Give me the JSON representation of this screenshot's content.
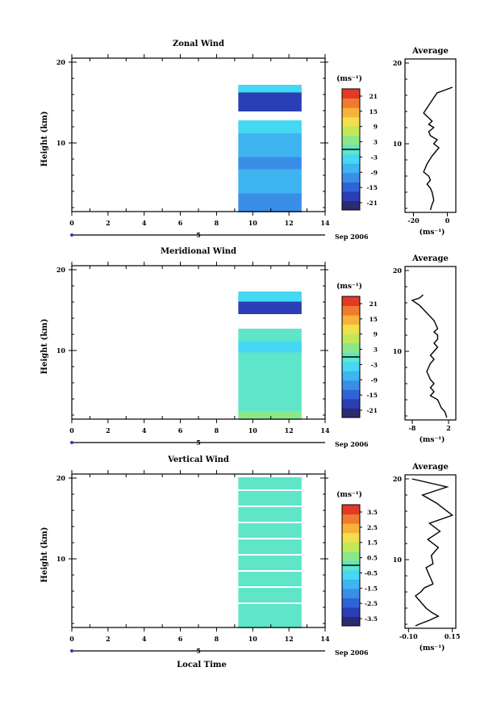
{
  "chart_data": [
    {
      "type": "heatmap",
      "title": "Zonal Wind",
      "ylabel": "Height (km)",
      "yticks": [
        "20",
        "10"
      ],
      "xticks": [
        "0",
        "2",
        "4",
        "6",
        "8",
        "10",
        "12",
        "14"
      ],
      "xlim": [
        0,
        14
      ],
      "ylim": [
        1.5,
        20.5
      ],
      "date_axis": {
        "day": "5",
        "month_year": "Sep 2006"
      },
      "data_x_range": [
        9.2,
        12.7
      ],
      "colorbar": {
        "unit": "(ms⁻¹)",
        "ticks": [
          "21",
          "15",
          "9",
          "3",
          "-3",
          "-9",
          "-15",
          "-21"
        ],
        "range": [
          -24,
          24
        ]
      },
      "cells": [
        {
          "y": 16.6,
          "v": -5
        },
        {
          "y": 15.9,
          "v": -20
        },
        {
          "y": 14.8,
          "v": -18
        },
        {
          "y": 11.9,
          "v": -4
        },
        {
          "y": 10.5,
          "v": -6
        },
        {
          "y": 9.0,
          "v": -9
        },
        {
          "y": 7.5,
          "v": -12
        },
        {
          "y": 6.0,
          "v": -9
        },
        {
          "y": 4.5,
          "v": -8
        },
        {
          "y": 3.0,
          "v": -10
        },
        {
          "y": 2.0,
          "v": -11
        }
      ],
      "average": {
        "title": "Average",
        "xticks": [
          "-20",
          "0"
        ],
        "xlim": [
          -25,
          5
        ],
        "xunit": "(ms⁻¹)",
        "yticks": [
          "20",
          "10"
        ],
        "x": [
          3,
          -2,
          -6,
          -8,
          -14,
          -9,
          -11,
          -8,
          -11,
          -10,
          -6,
          -8,
          -5,
          -7,
          -9,
          -12,
          -14,
          -11,
          -10,
          -12,
          -10,
          -9,
          -8,
          -9,
          -10
        ],
        "y": [
          17,
          16.6,
          16.3,
          15.7,
          13.8,
          12.8,
          12.4,
          12,
          11.5,
          11,
          10.5,
          10,
          9.5,
          9,
          8.5,
          7.5,
          6.5,
          6,
          5.5,
          5,
          4.5,
          4,
          3,
          2.5,
          1.8
        ]
      }
    },
    {
      "type": "heatmap",
      "title": "Meridional Wind",
      "ylabel": "Height (km)",
      "yticks": [
        "20",
        "10"
      ],
      "xticks": [
        "0",
        "2",
        "4",
        "6",
        "8",
        "10",
        "12",
        "14"
      ],
      "xlim": [
        0,
        14
      ],
      "ylim": [
        1.5,
        20.5
      ],
      "date_axis": {
        "day": "5",
        "month_year": "Sep 2006"
      },
      "data_x_range": [
        9.2,
        12.7
      ],
      "colorbar": {
        "unit": "(ms⁻¹)",
        "ticks": [
          "21",
          "15",
          "9",
          "3",
          "-3",
          "-9",
          "-15",
          "-21"
        ],
        "range": [
          -24,
          24
        ]
      },
      "cells": [
        {
          "y": 16.7,
          "v": -2
        },
        {
          "y": 15.4,
          "v": -18
        },
        {
          "y": 11.8,
          "v": 0
        },
        {
          "y": 10.5,
          "v": -2
        },
        {
          "y": 9.0,
          "v": -1
        },
        {
          "y": 7.5,
          "v": 0
        },
        {
          "y": 6.0,
          "v": 1
        },
        {
          "y": 4.5,
          "v": 0
        },
        {
          "y": 3.0,
          "v": -1
        },
        {
          "y": 2.0,
          "v": 3
        }
      ],
      "average": {
        "title": "Average",
        "xticks": [
          "-8",
          "2"
        ],
        "xlim": [
          -10,
          4
        ],
        "xunit": "(ms⁻¹)",
        "yticks": [
          "20",
          "10"
        ],
        "x": [
          -5,
          -6,
          -8,
          -6,
          -2,
          -1,
          -2,
          -1,
          -1,
          -2,
          -1,
          -2,
          -3,
          -2,
          -3,
          -4,
          -3,
          -2,
          -3,
          -2,
          -3,
          -1,
          0,
          1,
          1.5
        ],
        "y": [
          17,
          16.6,
          16.3,
          15.7,
          13.8,
          12.8,
          12.4,
          12,
          11.5,
          11,
          10.5,
          10,
          9.5,
          9,
          8.5,
          7.5,
          6.5,
          6,
          5.5,
          5,
          4.5,
          4,
          3,
          2.5,
          1.8
        ]
      }
    },
    {
      "type": "heatmap",
      "title": "Vertical Wind",
      "ylabel": "Height (km)",
      "yticks": [
        "20",
        "10"
      ],
      "xticks": [
        "0",
        "2",
        "4",
        "6",
        "8",
        "10",
        "12",
        "14"
      ],
      "xlim": [
        0,
        14
      ],
      "ylim": [
        1.5,
        20.5
      ],
      "xlabel": "Local Time",
      "date_axis": {
        "day": "5",
        "month_year": "Sep 2006"
      },
      "data_x_range": [
        9.2,
        12.7
      ],
      "colorbar": {
        "unit": "(ms⁻¹)",
        "ticks": [
          "3.5",
          "2.5",
          "1.5",
          "0.5",
          "-0.5",
          "-1.5",
          "-2.5",
          "-3.5"
        ],
        "range": [
          -4,
          4
        ]
      },
      "cells": [
        {
          "y": 19.5,
          "v": 0.3
        },
        {
          "y": 17.5,
          "v": 0.2
        },
        {
          "y": 15.5,
          "v": 0.3
        },
        {
          "y": 13.5,
          "v": 0.2
        },
        {
          "y": 11.5,
          "v": 0.3
        },
        {
          "y": 9.5,
          "v": 0.1
        },
        {
          "y": 7.5,
          "v": 0.3
        },
        {
          "y": 5.5,
          "v": 0.2
        },
        {
          "y": 3.5,
          "v": 0.3
        },
        {
          "y": 2.0,
          "v": 0.0
        }
      ],
      "average": {
        "title": "Average",
        "xticks": [
          "-0.10",
          "0.15"
        ],
        "xlim": [
          -0.12,
          0.17
        ],
        "xunit": "(ms⁻¹)",
        "yticks": [
          "20",
          "10"
        ],
        "x": [
          -0.08,
          0.12,
          -0.02,
          0.06,
          0.15,
          0.02,
          0.08,
          0.01,
          0.07,
          0.03,
          0.04,
          0.0,
          0.02,
          0.04,
          -0.01,
          -0.03,
          -0.06,
          -0.04,
          -0.02,
          0.0,
          0.03,
          0.07,
          0.02,
          -0.04,
          -0.06
        ],
        "y": [
          20,
          19,
          18,
          17,
          15.5,
          14.5,
          13.5,
          12.5,
          11.5,
          10.5,
          9.5,
          9,
          8,
          7,
          6.5,
          6,
          5.5,
          5,
          4.5,
          4,
          3.5,
          3,
          2.5,
          2,
          1.8
        ]
      }
    }
  ]
}
